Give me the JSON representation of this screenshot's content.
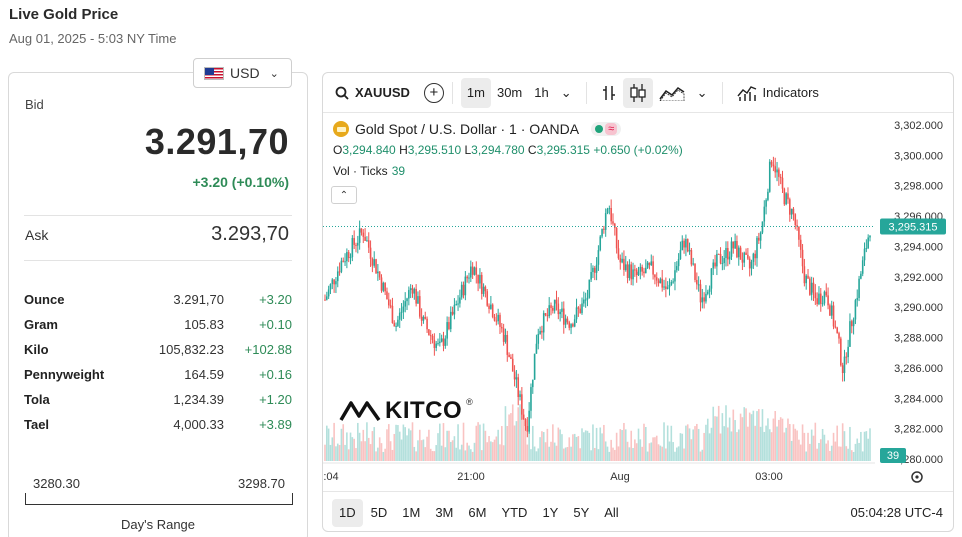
{
  "header": {
    "title": "Live Gold Price",
    "timestamp": "Aug 01, 2025 - 5:03 NY Time"
  },
  "currency": {
    "selected": "USD",
    "icon": "us-flag-icon"
  },
  "price": {
    "bid_label": "Bid",
    "bid": "3.291,70",
    "change": "+3.20 (+0.10%)",
    "ask_label": "Ask",
    "ask": "3.293,70"
  },
  "units": [
    {
      "name": "Ounce",
      "price": "3.291,70",
      "change": "+3.20"
    },
    {
      "name": "Gram",
      "price": "105.83",
      "change": "+0.10"
    },
    {
      "name": "Kilo",
      "price": "105,832.23",
      "change": "+102.88"
    },
    {
      "name": "Pennyweight",
      "price": "164.59",
      "change": "+0.16"
    },
    {
      "name": "Tola",
      "price": "1,234.39",
      "change": "+1.20"
    },
    {
      "name": "Tael",
      "price": "4,000.33",
      "change": "+3.89"
    }
  ],
  "days_range": {
    "low": "3280.30",
    "high": "3298.70",
    "label": "Day's Range"
  },
  "chart_toolbar": {
    "symbol": "XAUUSD",
    "intervals": [
      "1m",
      "30m",
      "1h"
    ],
    "active_interval": "1m",
    "indicators_label": "Indicators"
  },
  "chart_legend": {
    "title": "Gold Spot / U.S. Dollar · 1 · OANDA",
    "ohlc": {
      "O": "3,294.840",
      "H": "3,295.510",
      "L": "3,294.780",
      "C": "3,295.315",
      "change": "+0.650 (+0.02%)"
    },
    "volume_label": "Vol · Ticks",
    "volume_value": "39"
  },
  "chart_brand": {
    "logo_text": "KITCO",
    "mark": "®"
  },
  "range_buttons": [
    "1D",
    "5D",
    "1M",
    "3M",
    "6M",
    "YTD",
    "1Y",
    "5Y",
    "All"
  ],
  "active_range": "1D",
  "clock": "05:04:28 UTC-4",
  "colors": {
    "up": "#26a69a",
    "down": "#ef5350",
    "accent_green": "#2e8b57"
  },
  "chart_data": {
    "type": "candlestick",
    "instrument": "XAUUSD",
    "interval": "1m",
    "ylim": [
      3280.0,
      3303.0
    ],
    "y_ticks": [
      "3,302.000",
      "3,300.000",
      "3,298.000",
      "3,296.000",
      "3,294.000",
      "3,292.000",
      "3,290.000",
      "3,288.000",
      "3,286.000",
      "3,284.000",
      "3,282.000",
      "3,280.000"
    ],
    "x_ticks": [
      ":04",
      "21:00",
      "Aug",
      "03:00"
    ],
    "last_price": "3,295.315",
    "last_volume": "39",
    "approx_close_path": [
      {
        "x": 0.0,
        "y": 3290.5
      },
      {
        "x": 0.03,
        "y": 3293.0
      },
      {
        "x": 0.07,
        "y": 3295.0
      },
      {
        "x": 0.1,
        "y": 3292.0
      },
      {
        "x": 0.13,
        "y": 3288.8
      },
      {
        "x": 0.16,
        "y": 3291.5
      },
      {
        "x": 0.18,
        "y": 3289.0
      },
      {
        "x": 0.21,
        "y": 3287.2
      },
      {
        "x": 0.24,
        "y": 3290.0
      },
      {
        "x": 0.27,
        "y": 3292.8
      },
      {
        "x": 0.3,
        "y": 3290.5
      },
      {
        "x": 0.33,
        "y": 3288.0
      },
      {
        "x": 0.35,
        "y": 3285.0
      },
      {
        "x": 0.37,
        "y": 3282.0
      },
      {
        "x": 0.39,
        "y": 3288.5
      },
      {
        "x": 0.42,
        "y": 3290.0
      },
      {
        "x": 0.45,
        "y": 3289.0
      },
      {
        "x": 0.48,
        "y": 3290.5
      },
      {
        "x": 0.5,
        "y": 3293.5
      },
      {
        "x": 0.52,
        "y": 3297.0
      },
      {
        "x": 0.54,
        "y": 3293.0
      },
      {
        "x": 0.57,
        "y": 3292.0
      },
      {
        "x": 0.6,
        "y": 3292.5
      },
      {
        "x": 0.63,
        "y": 3291.0
      },
      {
        "x": 0.66,
        "y": 3294.5
      },
      {
        "x": 0.69,
        "y": 3290.5
      },
      {
        "x": 0.72,
        "y": 3293.0
      },
      {
        "x": 0.75,
        "y": 3294.0
      },
      {
        "x": 0.78,
        "y": 3292.5
      },
      {
        "x": 0.8,
        "y": 3295.0
      },
      {
        "x": 0.82,
        "y": 3300.0
      },
      {
        "x": 0.84,
        "y": 3297.5
      },
      {
        "x": 0.86,
        "y": 3296.0
      },
      {
        "x": 0.88,
        "y": 3292.0
      },
      {
        "x": 0.9,
        "y": 3290.5
      },
      {
        "x": 0.92,
        "y": 3291.0
      },
      {
        "x": 0.94,
        "y": 3288.0
      },
      {
        "x": 0.95,
        "y": 3286.0
      },
      {
        "x": 0.97,
        "y": 3287.0
      },
      {
        "x": 0.985,
        "y": 3288.5
      },
      {
        "x": 1.0,
        "y": 3291.0
      }
    ],
    "approx_close_path_tail": [
      {
        "x": 0.0,
        "y": 3291.0
      },
      {
        "x": 0.3,
        "y": 3288.0
      },
      {
        "x": 0.6,
        "y": 3291.5
      },
      {
        "x": 1.0,
        "y": 3295.3
      }
    ]
  }
}
